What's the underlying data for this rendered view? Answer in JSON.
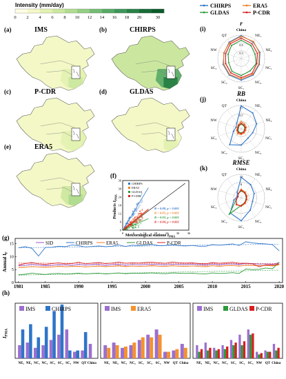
{
  "colorbar": {
    "title": "Intensity (mm/day)",
    "ticks": [
      "0",
      "2",
      "4",
      "6",
      "8",
      "10",
      "12",
      "14",
      "16",
      "18",
      "20",
      "30"
    ],
    "colors": [
      "#fdfde4",
      "#f3f8c6",
      "#e2f1b0",
      "#cbe79f",
      "#b0db8f",
      "#93cd82",
      "#74bc74",
      "#57aa66",
      "#3d965a",
      "#288046",
      "#176b36",
      "#0a5a2a"
    ]
  },
  "maps": [
    {
      "panel": "(a)",
      "name": "IMS",
      "level": 0.25
    },
    {
      "panel": "(b)",
      "name": "CHIRPS",
      "level": 0.85
    },
    {
      "panel": "(c)",
      "name": "P-CDR",
      "level": 0.2
    },
    {
      "panel": "(d)",
      "name": "GLDAS",
      "level": 0.15
    },
    {
      "panel": "(e)",
      "name": "ERA5",
      "level": 0.35
    }
  ],
  "radar": {
    "legend": [
      {
        "name": "CHIRPS",
        "color": "#2e75c8"
      },
      {
        "name": "ERA5",
        "color": "#f07c22"
      },
      {
        "name": "GLDAS",
        "color": "#2c9a3a"
      },
      {
        "name": "P-CDR",
        "color": "#d62020"
      }
    ],
    "axes": [
      "China",
      "NE₁",
      "NE₂",
      "NC₁",
      "NC₂",
      "SC₁",
      "SC₂",
      "SC₃",
      "NW",
      "QT"
    ],
    "panels": [
      {
        "panel": "(i)",
        "title": "r",
        "subtitle": "China",
        "ring_labels": [
          "0.7",
          "0.5",
          "0.3"
        ],
        "series": {
          "CHIRPS": [
            0.7,
            0.62,
            0.6,
            0.58,
            0.62,
            0.66,
            0.62,
            0.58,
            0.55,
            0.62
          ],
          "ERA5": [
            0.68,
            0.64,
            0.58,
            0.56,
            0.6,
            0.62,
            0.6,
            0.56,
            0.56,
            0.6
          ],
          "GLDAS": [
            0.56,
            0.5,
            0.44,
            0.48,
            0.46,
            0.52,
            0.48,
            0.4,
            0.42,
            0.5
          ],
          "P-CDR": [
            0.62,
            0.56,
            0.52,
            0.5,
            0.56,
            0.58,
            0.54,
            0.5,
            0.5,
            0.56
          ]
        }
      },
      {
        "panel": "(j)",
        "title": "RB",
        "subtitle": "China",
        "ring_labels": [
          "1.7",
          "0.7",
          "0.2"
        ],
        "series": {
          "CHIRPS": [
            1.7,
            1.45,
            1.2,
            0.9,
            0.85,
            1.2,
            1.45,
            0.6,
            0.4,
            0.55
          ],
          "ERA5": [
            0.55,
            0.45,
            0.4,
            0.35,
            0.38,
            0.42,
            0.45,
            0.35,
            0.3,
            0.38
          ],
          "GLDAS": [
            0.35,
            0.3,
            0.28,
            0.25,
            0.28,
            0.3,
            0.3,
            0.25,
            0.22,
            0.28
          ],
          "P-CDR": [
            0.4,
            0.35,
            0.32,
            0.28,
            0.3,
            0.35,
            0.35,
            0.3,
            0.25,
            0.32
          ]
        }
      },
      {
        "panel": "(k)",
        "title": "RMSE",
        "subtitle": "China",
        "ring_labels": [
          "12",
          "6"
        ],
        "series": {
          "CHIRPS": [
            12.0,
            9.5,
            8.0,
            7.0,
            9.0,
            13.5,
            11.0,
            4.5,
            2.5,
            4.0
          ],
          "ERA5": [
            5.0,
            4.0,
            3.5,
            3.5,
            4.0,
            5.0,
            5.0,
            3.0,
            2.0,
            3.0
          ],
          "GLDAS": [
            4.0,
            3.5,
            3.0,
            3.0,
            3.5,
            4.5,
            12.0,
            3.0,
            2.0,
            3.0
          ],
          "P-CDR": [
            4.5,
            3.5,
            3.2,
            3.2,
            3.6,
            4.8,
            4.8,
            3.0,
            2.0,
            3.0
          ]
        }
      }
    ]
  },
  "scatter": {
    "panel": "(f)",
    "xlabel": "Meteorological stations",
    "xlabel_sym": "I",
    "xlabel_sub": "PMA",
    "ylabel": "Products",
    "ylabel_sym": "I",
    "ylabel_sub": "PMA",
    "xticks": [
      "0",
      "6",
      "12",
      "18",
      "24",
      "30",
      "36"
    ],
    "yticks": [
      "0",
      "6",
      "12",
      "18",
      "24",
      "30",
      "36"
    ],
    "legend": [
      {
        "name": "CHIRPS",
        "color": "#2e75c8"
      },
      {
        "name": "ERA5",
        "color": "#f07c22"
      },
      {
        "name": "GLDAS",
        "color": "#2c9a3a"
      },
      {
        "name": "P-CDR",
        "color": "#d62020"
      }
    ],
    "stats": [
      {
        "text": "R = 0.88, p < 0.001",
        "color": "#2e75c8"
      },
      {
        "text": "R = 0.85, p < 0.001",
        "color": "#f07c22"
      },
      {
        "text": "R = 0.92, p < 0.001",
        "color": "#2c9a3a"
      },
      {
        "text": "R = 0.84, p < 0.001",
        "color": "#d62020"
      }
    ]
  },
  "chart_data": [
    {
      "type": "line",
      "panel": "(g)",
      "ylabel": "Annual I",
      "ylabel_sub": "F",
      "x": [
        1981,
        1982,
        1983,
        1984,
        1985,
        1986,
        1987,
        1988,
        1989,
        1990,
        1991,
        1992,
        1993,
        1994,
        1995,
        1996,
        1997,
        1998,
        1999,
        2000,
        2001,
        2002,
        2003,
        2004,
        2005,
        2006,
        2007,
        2008,
        2009,
        2010,
        2011,
        2012,
        2013,
        2014,
        2015,
        2016,
        2017,
        2018,
        2019,
        2020
      ],
      "xticks": [
        1981,
        1985,
        1990,
        1995,
        2000,
        2005,
        2010,
        2015,
        2020
      ],
      "yticks": [
        0,
        5,
        10,
        15
      ],
      "ylim": [
        0,
        17
      ],
      "series": [
        {
          "name": "SID",
          "color": "#9b59c9",
          "values": [
            6.5,
            6.6,
            7.1,
            6.7,
            6.5,
            6.6,
            6.9,
            6.8,
            6.6,
            7.0,
            6.7,
            6.9,
            7.0,
            6.6,
            6.9,
            7.1,
            6.6,
            7.0,
            6.8,
            6.9,
            7.0,
            6.9,
            6.8,
            7.1,
            6.9,
            6.9,
            7.0,
            6.8,
            6.7,
            7.1,
            6.8,
            7.1,
            7.2,
            6.9,
            7.4,
            7.3,
            7.1,
            7.2,
            7.0,
            7.7
          ]
        },
        {
          "name": "CHIRPS",
          "color": "#2e75c8",
          "values": [
            13.4,
            13.8,
            13.2,
            10.2,
            13.5,
            13.6,
            14.0,
            13.8,
            14.5,
            14.2,
            13.7,
            13.9,
            14.1,
            13.8,
            14.0,
            14.5,
            13.9,
            14.4,
            14.2,
            14.4,
            14.7,
            14.2,
            14.3,
            14.6,
            14.2,
            14.1,
            14.3,
            14.0,
            14.0,
            14.6,
            14.4,
            14.6,
            14.9,
            14.3,
            15.7,
            15.3,
            15.0,
            14.9,
            14.6,
            12.2
          ]
        },
        {
          "name": "ERA5",
          "color": "#f07c22",
          "values": [
            5.8,
            5.9,
            6.2,
            6.0,
            5.9,
            6.0,
            6.3,
            6.1,
            6.2,
            6.3,
            6.0,
            6.2,
            6.4,
            6.1,
            6.3,
            6.5,
            6.1,
            6.4,
            6.2,
            6.3,
            6.5,
            6.3,
            6.2,
            6.5,
            6.3,
            6.2,
            6.4,
            6.2,
            6.1,
            6.5,
            6.2,
            6.5,
            6.6,
            6.3,
            6.7,
            6.6,
            6.5,
            6.6,
            6.4,
            6.9
          ]
        },
        {
          "name": "GLDAS",
          "color": "#2c9a3a",
          "values": [
            3.0,
            3.2,
            3.6,
            3.3,
            3.1,
            3.4,
            3.5,
            3.3,
            3.4,
            3.6,
            3.3,
            3.5,
            3.6,
            3.3,
            3.5,
            3.7,
            3.4,
            3.6,
            3.5,
            3.6,
            3.7,
            3.5,
            3.4,
            3.7,
            3.6,
            3.5,
            3.6,
            3.4,
            3.3,
            3.7,
            3.5,
            3.6,
            3.8,
            3.5,
            5.2,
            5.0,
            5.1,
            5.6,
            5.3,
            7.9
          ]
        },
        {
          "name": "P-CDR",
          "color": "#d62020",
          "values": [
            6.8,
            7.3,
            7.7,
            7.2,
            7.0,
            7.3,
            7.6,
            7.2,
            7.3,
            7.8,
            7.2,
            7.5,
            7.7,
            7.3,
            7.5,
            7.9,
            7.4,
            7.6,
            7.5,
            7.7,
            7.8,
            7.6,
            7.4,
            7.9,
            7.6,
            7.5,
            7.6,
            7.3,
            7.2,
            7.7,
            7.4,
            7.6,
            7.8,
            7.4,
            7.4,
            7.2,
            6.1,
            6.8,
            6.7,
            7.2
          ]
        }
      ]
    },
    {
      "type": "bar",
      "panel": "(h)",
      "ylabel": "I",
      "ylabel_sub": "PMA",
      "categories": [
        "NE₁",
        "NE₂",
        "NC₁",
        "NC₂",
        "SC₁",
        "SC₂",
        "SC₃",
        "NW",
        "QT",
        "China"
      ],
      "ylim": [
        0,
        21
      ],
      "groups": [
        {
          "legend": [
            "IMS",
            "CHIRPS"
          ],
          "series": [
            {
              "name": "IMS",
              "color": "#9b6fd0",
              "values": [
                5.0,
                6.0,
                4.0,
                5.0,
                7.0,
                9.0,
                11.0,
                2.5,
                3.0,
                5.5
              ]
            },
            {
              "name": "CHIRPS",
              "color": "#2e75c8",
              "values": [
                11.0,
                13.0,
                8.0,
                12.0,
                18.0,
                20.5,
                3.0,
                3.0,
                10.0,
                0
              ]
            }
          ]
        },
        {
          "legend": [
            "IMS",
            "ERA5"
          ],
          "series": [
            {
              "name": "IMS",
              "color": "#9b6fd0",
              "values": [
                5.0,
                6.0,
                4.0,
                5.0,
                7.0,
                9.0,
                11.0,
                2.5,
                3.0,
                5.5
              ]
            },
            {
              "name": "ERA5",
              "color": "#f5922e",
              "values": [
                4.0,
                5.0,
                4.5,
                6.0,
                8.0,
                8.0,
                9.0,
                2.5,
                3.5,
                4.0
              ]
            }
          ]
        },
        {
          "legend": [
            "IMS",
            "GLDAS",
            "P-CDR"
          ],
          "series": [
            {
              "name": "IMS",
              "color": "#9b6fd0",
              "values": [
                5.0,
                6.0,
                4.0,
                5.0,
                7.0,
                9.0,
                11.0,
                2.5,
                3.0,
                5.5
              ]
            },
            {
              "name": "GLDAS",
              "color": "#2c9a3a",
              "values": [
                2.5,
                3.0,
                3.0,
                3.5,
                5.0,
                5.0,
                9.0,
                1.5,
                2.5,
                3.0
              ]
            },
            {
              "name": "P-CDR",
              "color": "#d62020",
              "values": [
                3.5,
                4.0,
                3.5,
                4.5,
                6.0,
                6.5,
                9.5,
                2.0,
                2.5,
                4.0
              ]
            }
          ]
        }
      ]
    }
  ]
}
